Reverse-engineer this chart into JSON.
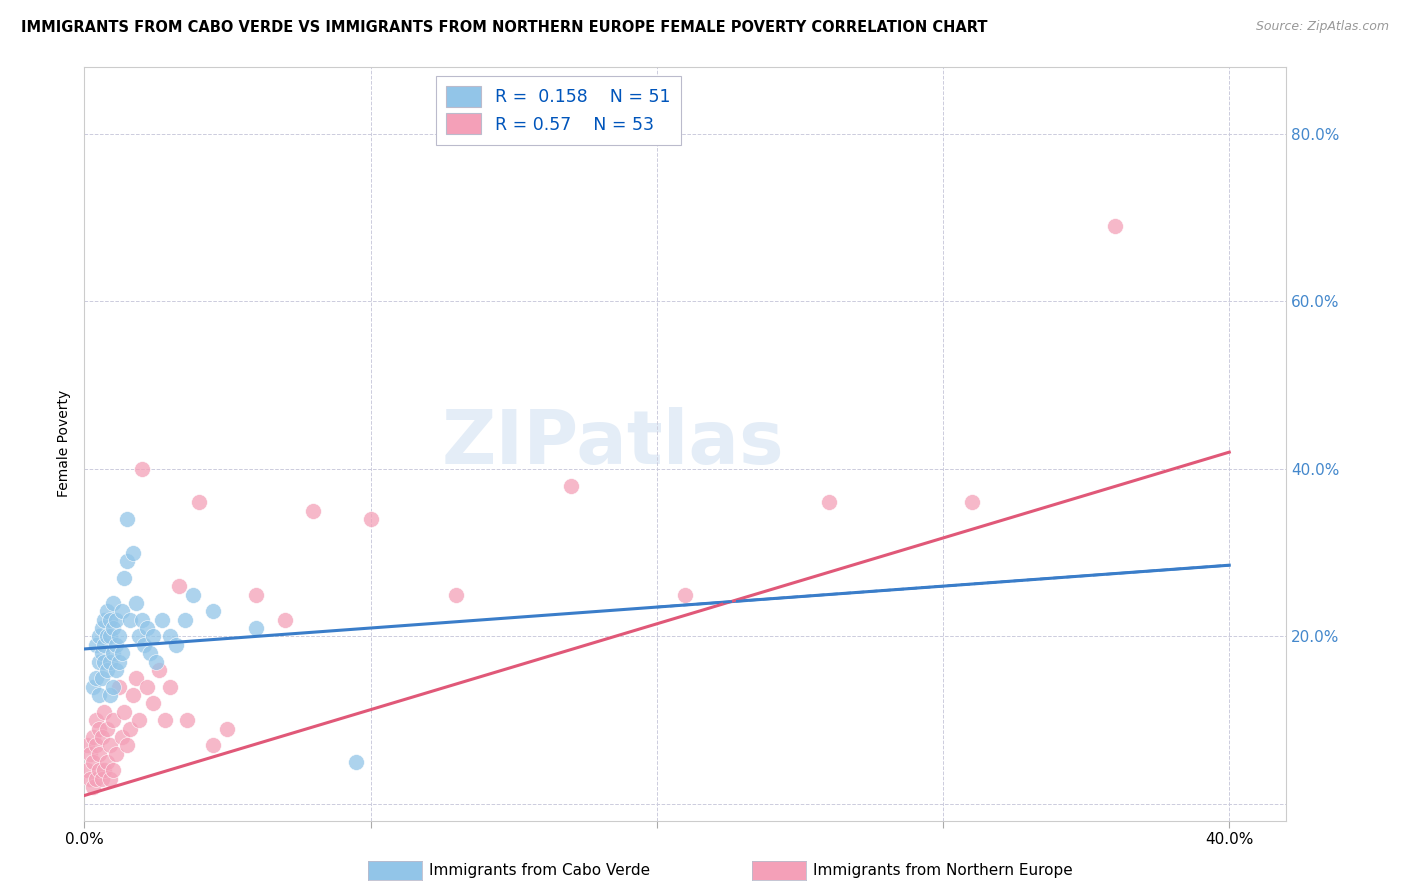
{
  "title": "IMMIGRANTS FROM CABO VERDE VS IMMIGRANTS FROM NORTHERN EUROPE FEMALE POVERTY CORRELATION CHART",
  "source": "Source: ZipAtlas.com",
  "ylabel": "Female Poverty",
  "xlim": [
    0.0,
    0.42
  ],
  "ylim": [
    -0.02,
    0.88
  ],
  "ytick_vals": [
    0.0,
    0.2,
    0.4,
    0.6,
    0.8
  ],
  "ytick_labels": [
    "",
    "20.0%",
    "40.0%",
    "60.0%",
    "80.0%"
  ],
  "xtick_vals": [
    0.0,
    0.1,
    0.2,
    0.3,
    0.4
  ],
  "xtick_labels": [
    "0.0%",
    "",
    "",
    "",
    "40.0%"
  ],
  "cabo_verde_R": 0.158,
  "cabo_verde_N": 51,
  "northern_europe_R": 0.57,
  "northern_europe_N": 53,
  "cabo_verde_color": "#92C5E8",
  "northern_europe_color": "#F4A0B8",
  "cabo_verde_line_color": "#3A7DC9",
  "northern_europe_line_color": "#E05878",
  "bg_color": "#FFFFFF",
  "grid_color": "#CCCCDD",
  "right_tick_color": "#4488CC",
  "cabo_verde_line_start_y": 0.185,
  "cabo_verde_line_end_y": 0.285,
  "northern_europe_line_start_y": 0.01,
  "northern_europe_line_end_y": 0.42,
  "cabo_verde_x": [
    0.003,
    0.004,
    0.004,
    0.005,
    0.005,
    0.005,
    0.006,
    0.006,
    0.006,
    0.007,
    0.007,
    0.007,
    0.008,
    0.008,
    0.008,
    0.009,
    0.009,
    0.009,
    0.009,
    0.01,
    0.01,
    0.01,
    0.01,
    0.011,
    0.011,
    0.011,
    0.012,
    0.012,
    0.013,
    0.013,
    0.014,
    0.015,
    0.015,
    0.016,
    0.017,
    0.018,
    0.019,
    0.02,
    0.021,
    0.022,
    0.023,
    0.024,
    0.025,
    0.027,
    0.03,
    0.032,
    0.035,
    0.038,
    0.045,
    0.06,
    0.095
  ],
  "cabo_verde_y": [
    0.14,
    0.19,
    0.15,
    0.17,
    0.2,
    0.13,
    0.18,
    0.21,
    0.15,
    0.17,
    0.22,
    0.19,
    0.16,
    0.2,
    0.23,
    0.13,
    0.17,
    0.2,
    0.22,
    0.14,
    0.18,
    0.21,
    0.24,
    0.16,
    0.19,
    0.22,
    0.17,
    0.2,
    0.18,
    0.23,
    0.27,
    0.29,
    0.34,
    0.22,
    0.3,
    0.24,
    0.2,
    0.22,
    0.19,
    0.21,
    0.18,
    0.2,
    0.17,
    0.22,
    0.2,
    0.19,
    0.22,
    0.25,
    0.23,
    0.21,
    0.05
  ],
  "northern_europe_x": [
    0.001,
    0.001,
    0.002,
    0.002,
    0.003,
    0.003,
    0.003,
    0.004,
    0.004,
    0.004,
    0.005,
    0.005,
    0.005,
    0.006,
    0.006,
    0.007,
    0.007,
    0.008,
    0.008,
    0.009,
    0.009,
    0.01,
    0.01,
    0.011,
    0.012,
    0.013,
    0.014,
    0.015,
    0.016,
    0.017,
    0.018,
    0.019,
    0.02,
    0.022,
    0.024,
    0.026,
    0.028,
    0.03,
    0.033,
    0.036,
    0.04,
    0.045,
    0.05,
    0.06,
    0.07,
    0.08,
    0.1,
    0.13,
    0.17,
    0.21,
    0.26,
    0.31,
    0.36
  ],
  "northern_europe_y": [
    0.04,
    0.07,
    0.03,
    0.06,
    0.02,
    0.05,
    0.08,
    0.03,
    0.07,
    0.1,
    0.04,
    0.06,
    0.09,
    0.03,
    0.08,
    0.04,
    0.11,
    0.05,
    0.09,
    0.03,
    0.07,
    0.04,
    0.1,
    0.06,
    0.14,
    0.08,
    0.11,
    0.07,
    0.09,
    0.13,
    0.15,
    0.1,
    0.4,
    0.14,
    0.12,
    0.16,
    0.1,
    0.14,
    0.26,
    0.1,
    0.36,
    0.07,
    0.09,
    0.25,
    0.22,
    0.35,
    0.34,
    0.25,
    0.38,
    0.25,
    0.36,
    0.36,
    0.69
  ]
}
